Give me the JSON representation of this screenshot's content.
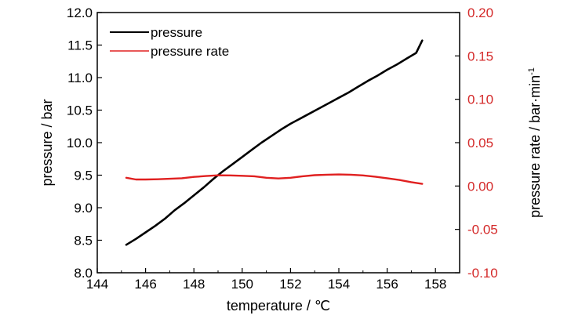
{
  "chart_data": {
    "type": "line",
    "title": "",
    "xlabel": "temperature / ℃",
    "ylabel_left": "pressure / bar",
    "ylabel_right_main": "pressure rate / bar·min",
    "ylabel_right_sup": "-1",
    "xlim": [
      144,
      159
    ],
    "xticks": [
      144,
      146,
      148,
      150,
      152,
      154,
      156,
      158
    ],
    "xtick_labels": [
      "144",
      "146",
      "148",
      "150",
      "152",
      "154",
      "156",
      "158"
    ],
    "ylim_left": [
      8.0,
      12.0
    ],
    "yticks_left": [
      8.0,
      8.5,
      9.0,
      9.5,
      10.0,
      10.5,
      11.0,
      11.5,
      12.0
    ],
    "ytick_labels_left": [
      "8.0",
      "8.5",
      "9.0",
      "9.5",
      "10.0",
      "10.5",
      "11.0",
      "11.5",
      "12.0"
    ],
    "ylim_right": [
      -0.1,
      0.2
    ],
    "yticks_right": [
      -0.1,
      -0.05,
      0.0,
      0.05,
      0.1,
      0.15,
      0.2
    ],
    "ytick_labels_right": [
      "-0.10",
      "-0.05",
      "0.00",
      "0.05",
      "0.10",
      "0.15",
      "0.20"
    ],
    "grid": false,
    "legend_position": "top-left",
    "colors": {
      "pressure": "#000000",
      "pressure_rate": "#e02020",
      "right_axis": "#d42a2a"
    },
    "series": [
      {
        "name": "pressure",
        "axis": "left",
        "x": [
          145.2,
          145.6,
          146.0,
          146.4,
          146.8,
          147.2,
          147.6,
          148.0,
          148.4,
          148.8,
          149.2,
          149.6,
          150.0,
          150.4,
          150.8,
          151.2,
          151.6,
          152.0,
          152.4,
          152.8,
          153.2,
          153.6,
          154.0,
          154.4,
          154.8,
          155.2,
          155.6,
          156.0,
          156.4,
          156.8,
          157.2,
          157.45
        ],
        "y": [
          8.43,
          8.52,
          8.62,
          8.72,
          8.83,
          8.96,
          9.07,
          9.19,
          9.31,
          9.44,
          9.56,
          9.67,
          9.78,
          9.89,
          10.0,
          10.1,
          10.2,
          10.29,
          10.37,
          10.45,
          10.53,
          10.61,
          10.69,
          10.77,
          10.86,
          10.95,
          11.03,
          11.12,
          11.2,
          11.29,
          11.38,
          11.57
        ]
      },
      {
        "name": "pressure rate",
        "axis": "right",
        "x": [
          145.2,
          145.6,
          146.0,
          146.5,
          147.0,
          147.5,
          148.0,
          148.5,
          149.0,
          149.5,
          150.0,
          150.5,
          151.0,
          151.5,
          152.0,
          152.5,
          153.0,
          153.5,
          154.0,
          154.5,
          155.0,
          155.5,
          156.0,
          156.5,
          157.0,
          157.45
        ],
        "y": [
          0.0095,
          0.0075,
          0.0075,
          0.0078,
          0.0083,
          0.009,
          0.0105,
          0.0115,
          0.0123,
          0.0122,
          0.0118,
          0.0112,
          0.0095,
          0.0087,
          0.0095,
          0.0112,
          0.0125,
          0.013,
          0.0133,
          0.013,
          0.0122,
          0.0108,
          0.009,
          0.007,
          0.0045,
          0.0025
        ]
      }
    ]
  }
}
